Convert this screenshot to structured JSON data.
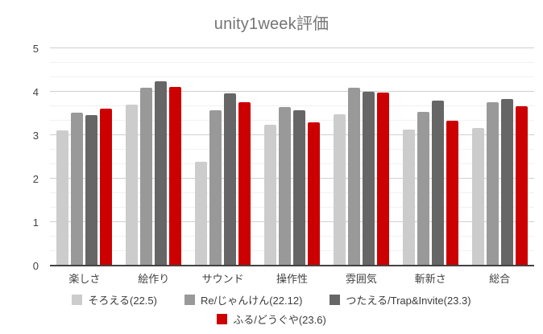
{
  "title": "unity1week評価",
  "colors": {
    "title": "#757575",
    "axis_label": "#424242",
    "baseline": "#424242",
    "major_grid": "#cfcfcf",
    "minor_grid": "#f1f1f1",
    "background": "#ffffff"
  },
  "chart_data": {
    "type": "bar",
    "title": "unity1week評価",
    "categories": [
      "楽しさ",
      "絵作り",
      "サウンド",
      "操作性",
      "雰囲気",
      "斬新さ",
      "総合"
    ],
    "series": [
      {
        "name": "そろえる(22.5)",
        "color": "#cccccc",
        "values": [
          3.11,
          3.7,
          2.38,
          3.25,
          3.48,
          3.13,
          3.17
        ]
      },
      {
        "name": "Re/じゃんけん(22.12)",
        "color": "#999999",
        "values": [
          3.52,
          4.1,
          3.57,
          3.64,
          4.1,
          3.54,
          3.76
        ]
      },
      {
        "name": "つたえる/Trap&Invite(23.3)",
        "color": "#666666",
        "values": [
          3.47,
          4.24,
          3.96,
          3.58,
          4.0,
          3.79,
          3.84
        ]
      },
      {
        "name": "ふる/どうぐや(23.6)",
        "color": "#cc0000",
        "values": [
          3.62,
          4.12,
          3.76,
          3.3,
          3.99,
          3.34,
          3.67
        ]
      }
    ],
    "xlabel": "",
    "ylabel": "",
    "ylim": [
      0,
      5
    ],
    "y_ticks": [
      0,
      1,
      2,
      3,
      4,
      5
    ],
    "minor_gridlines_per_major": 2,
    "grid": true,
    "legend_position": "bottom",
    "legend_rows": [
      [
        0,
        1,
        2
      ],
      [
        3
      ]
    ]
  }
}
